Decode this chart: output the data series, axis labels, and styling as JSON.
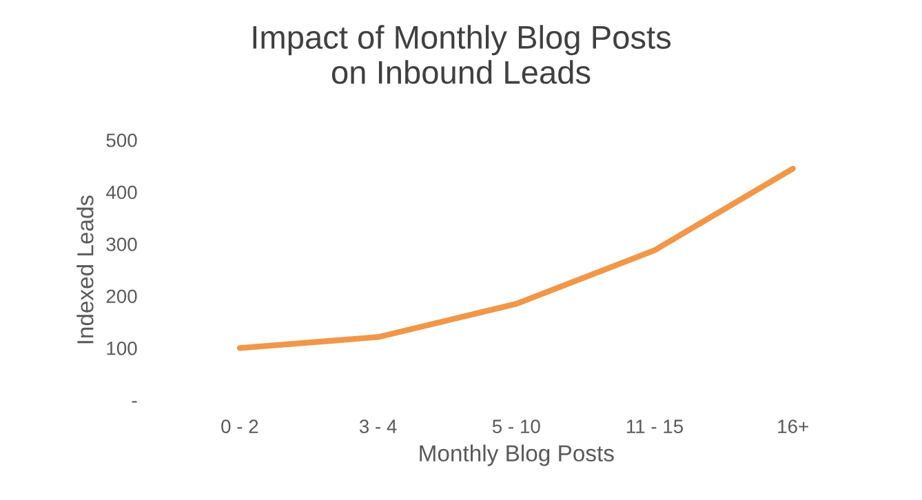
{
  "chart_data": {
    "type": "line",
    "title": "Impact of Monthly Blog Posts\non Inbound Leads",
    "xlabel": "Monthly Blog Posts",
    "ylabel": "Indexed Leads",
    "categories": [
      "0 - 2",
      "3 - 4",
      "5 - 10",
      "11 - 15",
      "16+"
    ],
    "series": [
      {
        "color": "#f0974a",
        "values": [
          100,
          121,
          185,
          288,
          445
        ]
      }
    ],
    "ylim": [
      0,
      500
    ],
    "yticks": [
      {
        "value": 0,
        "label": "-"
      },
      100,
      200,
      300,
      400,
      500
    ],
    "grid": false,
    "legend": false
  }
}
